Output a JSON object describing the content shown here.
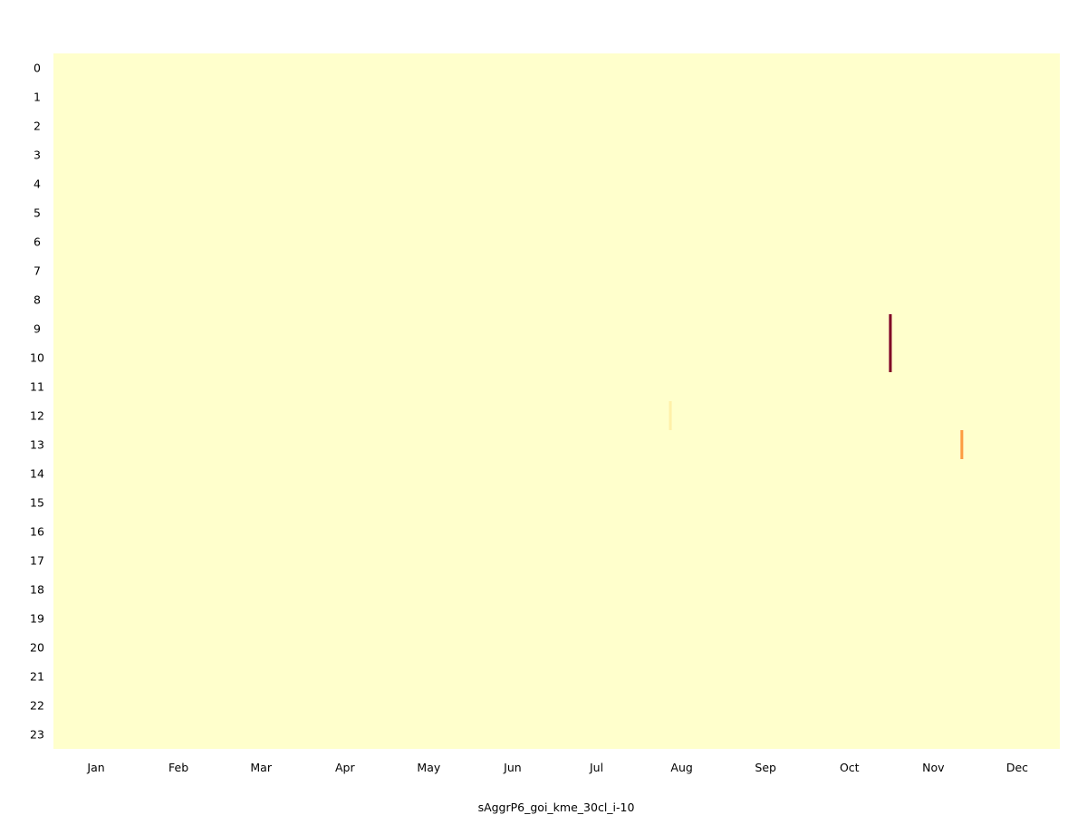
{
  "chart_data": {
    "type": "heatmap",
    "title": "",
    "xlabel": "sAggrP6_goi_kme_30cl_i-10",
    "ylabel": "",
    "x_axis": {
      "unit": "day of year",
      "range": [
        1,
        366
      ],
      "tick_labels": [
        "Jan",
        "Feb",
        "Mar",
        "Apr",
        "May",
        "Jun",
        "Jul",
        "Aug",
        "Sep",
        "Oct",
        "Nov",
        "Dec"
      ]
    },
    "y_axis": {
      "unit": "hour of day",
      "range": [
        0,
        23
      ],
      "tick_labels": [
        "0",
        "1",
        "2",
        "3",
        "4",
        "5",
        "6",
        "7",
        "8",
        "9",
        "10",
        "11",
        "12",
        "13",
        "14",
        "15",
        "16",
        "17",
        "18",
        "19",
        "20",
        "21",
        "22",
        "23"
      ]
    },
    "background_value": 0,
    "value_range": [
      0,
      1
    ],
    "color_scale": {
      "name": "YlOrRd",
      "stops": [
        "#ffffcc",
        "#ffeda0",
        "#fed976",
        "#feb24c",
        "#fd8d3c",
        "#fc4e2a",
        "#e31a1c",
        "#bd0026",
        "#800026"
      ]
    },
    "grid": false,
    "legend": "none",
    "nonzero_cells": [
      {
        "date": "Aug 12",
        "hour": 12,
        "value": 0.1
      },
      {
        "date": "Oct 31",
        "hour": 9,
        "value": 1.0
      },
      {
        "date": "Oct 31",
        "hour": 10,
        "value": 1.0
      },
      {
        "date": "Nov 26",
        "hour": 13,
        "value": 0.45
      }
    ]
  }
}
